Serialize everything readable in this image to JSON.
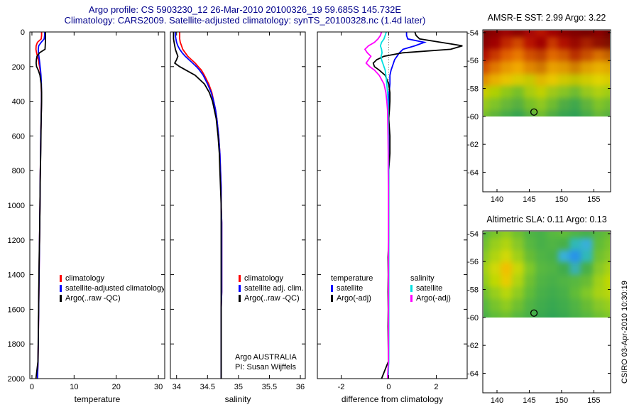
{
  "header": {
    "line1": "Argo profile: CS 5903230_12 26-Mar-2010 20100326_19 59.685S 145.732E",
    "line2": "Climatology: CARS2009. Satellite-adjusted climatology: synTS_20100328.nc (1.4d later)"
  },
  "watermark": "CSIRO 03-Apr-2010 10:30:19",
  "annotation": {
    "line1": "Argo AUSTRALIA",
    "line2": "PI: Susan Wijffels"
  },
  "colors": {
    "climatology": "#ff0000",
    "satellite": "#0000ff",
    "argo": "#000000",
    "salinity_satellite": "#00e0e0",
    "salinity_argo": "#ff00ff",
    "title": "#00008b"
  },
  "legends": {
    "temperature": {
      "items": [
        {
          "label": "climatology",
          "color": "#ff0000"
        },
        {
          "label": "satellite-adjusted climatology",
          "color": "#0000ff"
        },
        {
          "label": "Argo(..raw -QC)",
          "color": "#000000"
        }
      ]
    },
    "salinity": {
      "items": [
        {
          "label": "climatology",
          "color": "#ff0000"
        },
        {
          "label": "satellite adj. clim.",
          "color": "#0000ff"
        },
        {
          "label": "Argo(..raw -QC)",
          "color": "#000000"
        }
      ]
    },
    "difference": {
      "col1_header": "temperature",
      "col2_header": "salinity",
      "col1": [
        {
          "label": "satellite",
          "color": "#0000ff"
        },
        {
          "label": "Argo(-adj)",
          "color": "#000000"
        }
      ],
      "col2": [
        {
          "label": "satellite",
          "color": "#00e0e0"
        },
        {
          "label": "Argo(-adj)",
          "color": "#ff00ff"
        }
      ]
    }
  },
  "chart_data": [
    {
      "type": "line",
      "panel": "temperature-profile",
      "xlabel": "temperature",
      "xlim": [
        -0.5,
        31.5
      ],
      "xticks": [
        0,
        10,
        20,
        30
      ],
      "ylim": [
        0,
        2000
      ],
      "yticks": [
        0,
        200,
        400,
        600,
        800,
        1000,
        1200,
        1400,
        1600,
        1800,
        2000
      ],
      "ytick_labels": true,
      "zero_line": false,
      "depths": [
        0,
        20,
        40,
        60,
        80,
        100,
        120,
        140,
        160,
        180,
        200,
        220,
        250,
        300,
        350,
        400,
        450,
        500,
        600,
        700,
        800,
        900,
        1000,
        1100,
        1200,
        1300,
        1400,
        1500,
        1600,
        1700,
        1800,
        1900,
        2000
      ],
      "series": [
        {
          "name": "climatology",
          "color": "#ff0000",
          "values": [
            2.3,
            2.3,
            2.2,
            1.3,
            1.0,
            0.95,
            1.1,
            1.3,
            1.5,
            1.65,
            1.8,
            1.95,
            2.1,
            2.2,
            2.25,
            2.25,
            2.22,
            2.2,
            2.1,
            2.05,
            2.0,
            1.95,
            1.9,
            1.85,
            1.8,
            1.75,
            1.7,
            1.65,
            1.6,
            1.55,
            1.5,
            1.45,
            1.3
          ]
        },
        {
          "name": "satellite-adjusted climatology",
          "color": "#0000ff",
          "values": [
            3.0,
            3.0,
            2.9,
            2.2,
            1.6,
            1.5,
            1.55,
            1.65,
            1.75,
            1.85,
            1.95,
            2.05,
            2.15,
            2.25,
            2.27,
            2.26,
            2.22,
            2.2,
            2.1,
            2.05,
            2.0,
            1.95,
            1.9,
            1.85,
            1.8,
            1.75,
            1.7,
            1.65,
            1.6,
            1.55,
            1.5,
            1.45,
            1.32
          ]
        },
        {
          "name": "Argo(..raw -QC)",
          "color": "#000000",
          "values": [
            3.22,
            3.22,
            3.2,
            3.18,
            3.15,
            3.1,
            1.8,
            1.2,
            1.05,
            1.0,
            1.1,
            1.5,
            1.9,
            2.2,
            2.3,
            2.3,
            2.25,
            2.2,
            2.15,
            2.1,
            2.0,
            1.95,
            1.9,
            1.85,
            1.8,
            1.72,
            1.68,
            1.62,
            1.58,
            1.52,
            1.48,
            1.44,
            0.95
          ]
        }
      ]
    },
    {
      "type": "line",
      "panel": "salinity-profile",
      "xlabel": "salinity",
      "xlim": [
        33.9,
        36.08
      ],
      "xticks": [
        34,
        34.5,
        35,
        35.5,
        36
      ],
      "ylim": [
        0,
        2000
      ],
      "yticks": [
        0,
        200,
        400,
        600,
        800,
        1000,
        1200,
        1400,
        1600,
        1800,
        2000
      ],
      "ytick_labels": false,
      "zero_line": false,
      "depths": [
        0,
        20,
        40,
        60,
        80,
        100,
        120,
        140,
        160,
        180,
        200,
        220,
        250,
        300,
        350,
        400,
        450,
        500,
        600,
        700,
        800,
        900,
        1000,
        1100,
        1200,
        1300,
        1400,
        1500,
        1600,
        1700,
        1800,
        1900,
        2000
      ],
      "series": [
        {
          "name": "climatology",
          "color": "#ff0000",
          "values": [
            34.05,
            34.05,
            34.05,
            34.06,
            34.08,
            34.1,
            34.14,
            34.18,
            34.24,
            34.3,
            34.35,
            34.4,
            34.45,
            34.52,
            34.57,
            34.6,
            34.63,
            34.65,
            34.68,
            34.7,
            34.71,
            34.72,
            34.72,
            34.73,
            34.73,
            34.73,
            34.73,
            34.73,
            34.72,
            34.72,
            34.72,
            34.72,
            34.72
          ]
        },
        {
          "name": "satellite adj. clim.",
          "color": "#0000ff",
          "values": [
            33.98,
            33.98,
            33.99,
            34.0,
            34.02,
            34.05,
            34.09,
            34.14,
            34.2,
            34.26,
            34.32,
            34.37,
            34.43,
            34.5,
            34.56,
            34.6,
            34.63,
            34.65,
            34.68,
            34.7,
            34.71,
            34.72,
            34.72,
            34.73,
            34.73,
            34.73,
            34.73,
            34.73,
            34.72,
            34.72,
            34.72,
            34.72,
            34.72
          ]
        },
        {
          "name": "Argo(..raw -QC)",
          "color": "#000000",
          "values": [
            33.95,
            33.95,
            33.95,
            33.96,
            33.97,
            33.98,
            34.0,
            34.02,
            34.0,
            33.97,
            34.05,
            34.15,
            34.3,
            34.45,
            34.53,
            34.58,
            34.61,
            34.64,
            34.67,
            34.69,
            34.7,
            34.71,
            34.72,
            34.72,
            34.72,
            34.72,
            34.72,
            34.72,
            34.72,
            34.72,
            34.72,
            34.72,
            34.72
          ]
        }
      ]
    },
    {
      "type": "line",
      "panel": "difference-from-climatology",
      "xlabel": "difference from climatology",
      "xlim": [
        -3,
        3.3
      ],
      "xticks": [
        -2,
        0,
        2
      ],
      "ylim": [
        0,
        2000
      ],
      "yticks": [
        0,
        200,
        400,
        600,
        800,
        1000,
        1200,
        1400,
        1600,
        1800,
        2000
      ],
      "ytick_labels": false,
      "zero_line": true,
      "depths": [
        0,
        20,
        40,
        60,
        80,
        100,
        120,
        140,
        160,
        180,
        200,
        220,
        250,
        300,
        350,
        400,
        450,
        500,
        600,
        700,
        800,
        900,
        1000,
        1100,
        1200,
        1300,
        1400,
        1500,
        1600,
        1700,
        1800,
        1900,
        2000
      ],
      "series": [
        {
          "name": "temperature satellite",
          "color": "#0000ff",
          "values": [
            0.75,
            0.75,
            0.8,
            1.5,
            1.1,
            0.6,
            0.45,
            0.35,
            0.25,
            0.2,
            0.15,
            0.1,
            0.05,
            0.05,
            0.02,
            0.01,
            0.0,
            0.0,
            0.0,
            0.0,
            0.0,
            0.0,
            0.0,
            0.0,
            0.0,
            0.0,
            0.0,
            0.0,
            0.0,
            0.0,
            0.0,
            0.0,
            -0.05
          ]
        },
        {
          "name": "temperature Argo(-adj)",
          "color": "#000000",
          "values": [
            1.1,
            1.15,
            1.3,
            2.2,
            3.1,
            2.6,
            0.6,
            -0.2,
            -0.5,
            -0.65,
            -0.6,
            -0.4,
            -0.15,
            0.0,
            0.05,
            0.05,
            0.03,
            0.0,
            0.05,
            0.05,
            0.0,
            0.0,
            0.0,
            0.0,
            0.0,
            -0.03,
            -0.02,
            -0.03,
            -0.02,
            -0.03,
            -0.02,
            -0.01,
            -0.3
          ]
        },
        {
          "name": "salinity satellite",
          "color": "#00e0e0",
          "values": [
            -0.1,
            -0.15,
            -0.2,
            -0.3,
            -0.35,
            -0.3,
            -0.28,
            -0.32,
            -0.3,
            -0.25,
            -0.2,
            -0.15,
            -0.12,
            -0.08,
            -0.05,
            -0.03,
            -0.02,
            -0.02,
            -0.01,
            -0.01,
            0.0,
            0.0,
            0.0,
            0.0,
            0.0,
            0.0,
            0.0,
            0.0,
            0.0,
            0.0,
            0.0,
            0.0,
            -0.02
          ]
        },
        {
          "name": "salinity Argo(-adj)",
          "color": "#ff00ff",
          "values": [
            -0.3,
            -0.35,
            -0.45,
            -0.6,
            -0.85,
            -1.0,
            -0.9,
            -0.75,
            -0.85,
            -0.95,
            -0.8,
            -0.6,
            -0.4,
            -0.2,
            -0.12,
            -0.08,
            -0.05,
            -0.04,
            -0.03,
            -0.02,
            -0.02,
            -0.01,
            -0.01,
            -0.01,
            -0.01,
            -0.01,
            -0.01,
            -0.01,
            -0.01,
            -0.01,
            -0.01,
            -0.01,
            -0.05
          ]
        }
      ]
    },
    {
      "type": "heatmap",
      "panel": "sst-map",
      "title": "AMSR-E SST: 2.99 Argo: 3.22",
      "xticks": [
        140,
        145,
        150,
        155
      ],
      "yticks": [
        -54,
        -56,
        -58,
        -60,
        -62,
        -64
      ],
      "lon_range": [
        137.8,
        157.6
      ],
      "lat_range": [
        -53.8,
        -65.4
      ],
      "data_lat_limit": -60,
      "marker": {
        "lon": 145.73,
        "lat": -59.69
      },
      "grid": [
        [
          "#780000",
          "#8b0000",
          "#9c0404",
          "#8b0000",
          "#a50808",
          "#b81400",
          "#a00000",
          "#8b0000",
          "#800000",
          "#780000",
          "#8b0000",
          "#700000"
        ],
        [
          "#8b0000",
          "#a00000",
          "#c02800",
          "#d04800",
          "#b81400",
          "#a00000",
          "#c83800",
          "#b01000",
          "#980800",
          "#a82000",
          "#901000",
          "#801000"
        ],
        [
          "#b01000",
          "#c83800",
          "#e06000",
          "#e87800",
          "#d05000",
          "#c04000",
          "#e06800",
          "#d05800",
          "#b83000",
          "#c85000",
          "#d87000",
          "#c06000"
        ],
        [
          "#d05000",
          "#e07800",
          "#e89800",
          "#f0a800",
          "#e08800",
          "#d07800",
          "#e8a000",
          "#e09800",
          "#d08000",
          "#e0a000",
          "#e8b000",
          "#e0a800"
        ],
        [
          "#e09000",
          "#e8b000",
          "#e8c400",
          "#d8cc00",
          "#c8c800",
          "#e0b800",
          "#e8c800",
          "#d0c800",
          "#c0c400",
          "#d0cc00",
          "#e0d400",
          "#d8cc00"
        ],
        [
          "#c8cc00",
          "#b0d000",
          "#90c818",
          "#78c028",
          "#a8cc10",
          "#c0d000",
          "#a0c818",
          "#88c424",
          "#70bc30",
          "#98c81c",
          "#b0d010",
          "#a0cc14"
        ],
        [
          "#98c81c",
          "#80c428",
          "#68b838",
          "#58b040",
          "#78c028",
          "#90c820",
          "#70bc30",
          "#50ac44",
          "#40a84c",
          "#60b43c",
          "#80c428",
          "#70bc30"
        ],
        [
          "#78c028",
          "#60b43c",
          "#48ac48",
          "#38a450",
          "#58b040",
          "#70bc30",
          "#50ac44",
          "#38a450",
          "#30a054",
          "#48ac48",
          "#68b838",
          "#58b040"
        ]
      ]
    },
    {
      "type": "heatmap",
      "panel": "sla-map",
      "title": "Altimetric SLA: 0.11 Argo: 0.13",
      "xticks": [
        140,
        145,
        150,
        155
      ],
      "yticks": [
        -54,
        -56,
        -58,
        -60,
        -62,
        -64
      ],
      "lon_range": [
        137.8,
        157.6
      ],
      "lat_range": [
        -53.8,
        -65.4
      ],
      "data_lat_limit": -60,
      "marker": {
        "lon": 145.73,
        "lat": -59.69
      },
      "grid": [
        [
          "#58b840",
          "#78c42c",
          "#90cc20",
          "#70c030",
          "#50b444",
          "#48b048",
          "#58b840",
          "#60bc38",
          "#50b444",
          "#48b048",
          "#58b840",
          "#68bc34"
        ],
        [
          "#70c030",
          "#98ce1c",
          "#b0d410",
          "#88c828",
          "#58b840",
          "#48b048",
          "#50b444",
          "#48b048",
          "#30b8b8",
          "#38b0d8",
          "#60bc38",
          "#78c42c"
        ],
        [
          "#88c828",
          "#b0d410",
          "#d0d808",
          "#a0d018",
          "#68bc34",
          "#50b444",
          "#48b048",
          "#38b0d8",
          "#2894e8",
          "#30b8b8",
          "#70c030",
          "#88c828"
        ],
        [
          "#a0d018",
          "#d0d808",
          "#f0c000",
          "#c8d808",
          "#80c828",
          "#58b840",
          "#50b444",
          "#40ac4c",
          "#38b0b0",
          "#48b048",
          "#88c828",
          "#a8d214"
        ],
        [
          "#90cc20",
          "#c0d800",
          "#e8cc00",
          "#b0d410",
          "#70c030",
          "#50b444",
          "#48b048",
          "#50b444",
          "#58b840",
          "#68bc34",
          "#a0d018",
          "#c0d800"
        ],
        [
          "#70c030",
          "#98ce1c",
          "#b8d60c",
          "#90cc20",
          "#60bc38",
          "#48b048",
          "#40ac4c",
          "#48b048",
          "#60bc38",
          "#80c828",
          "#a8d214",
          "#b8d60c"
        ],
        [
          "#58b840",
          "#78c42c",
          "#90cc20",
          "#70c030",
          "#50b444",
          "#40ac4c",
          "#38a850",
          "#40ac4c",
          "#50b444",
          "#68bc34",
          "#88c828",
          "#98ce1c"
        ],
        [
          "#48b048",
          "#60bc38",
          "#70c030",
          "#58b840",
          "#48b048",
          "#38a850",
          "#30a454",
          "#38a850",
          "#48b048",
          "#58b840",
          "#70c030",
          "#80c828"
        ]
      ]
    }
  ]
}
